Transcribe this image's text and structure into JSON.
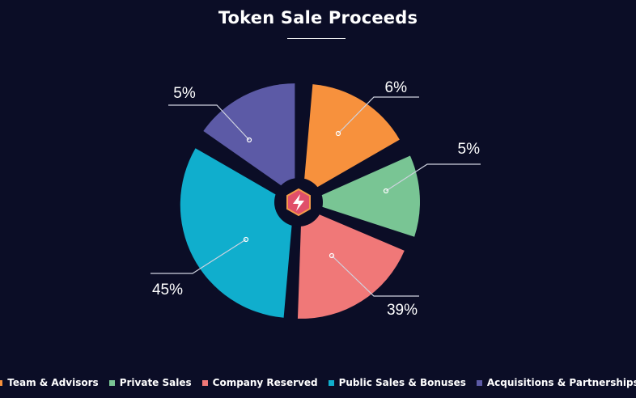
{
  "chart_data": {
    "type": "pie",
    "title": "Token Sale Proceeds",
    "slices": [
      {
        "name": "Team & Advisors",
        "label": "6%",
        "color": "#f7913d"
      },
      {
        "name": "Private Sales",
        "label": "5%",
        "color": "#79c594"
      },
      {
        "name": "Company Reserved",
        "label": "39%",
        "color": "#f07878"
      },
      {
        "name": "Public Sales & Bonuses",
        "label": "45%",
        "color": "#10aecd"
      },
      {
        "name": "Acquisitions & Partnerships",
        "label": "5%",
        "color": "#5c5aa6"
      }
    ],
    "legend_position": "bottom",
    "center_icon": "lightning-hexagon-logo-icon"
  }
}
